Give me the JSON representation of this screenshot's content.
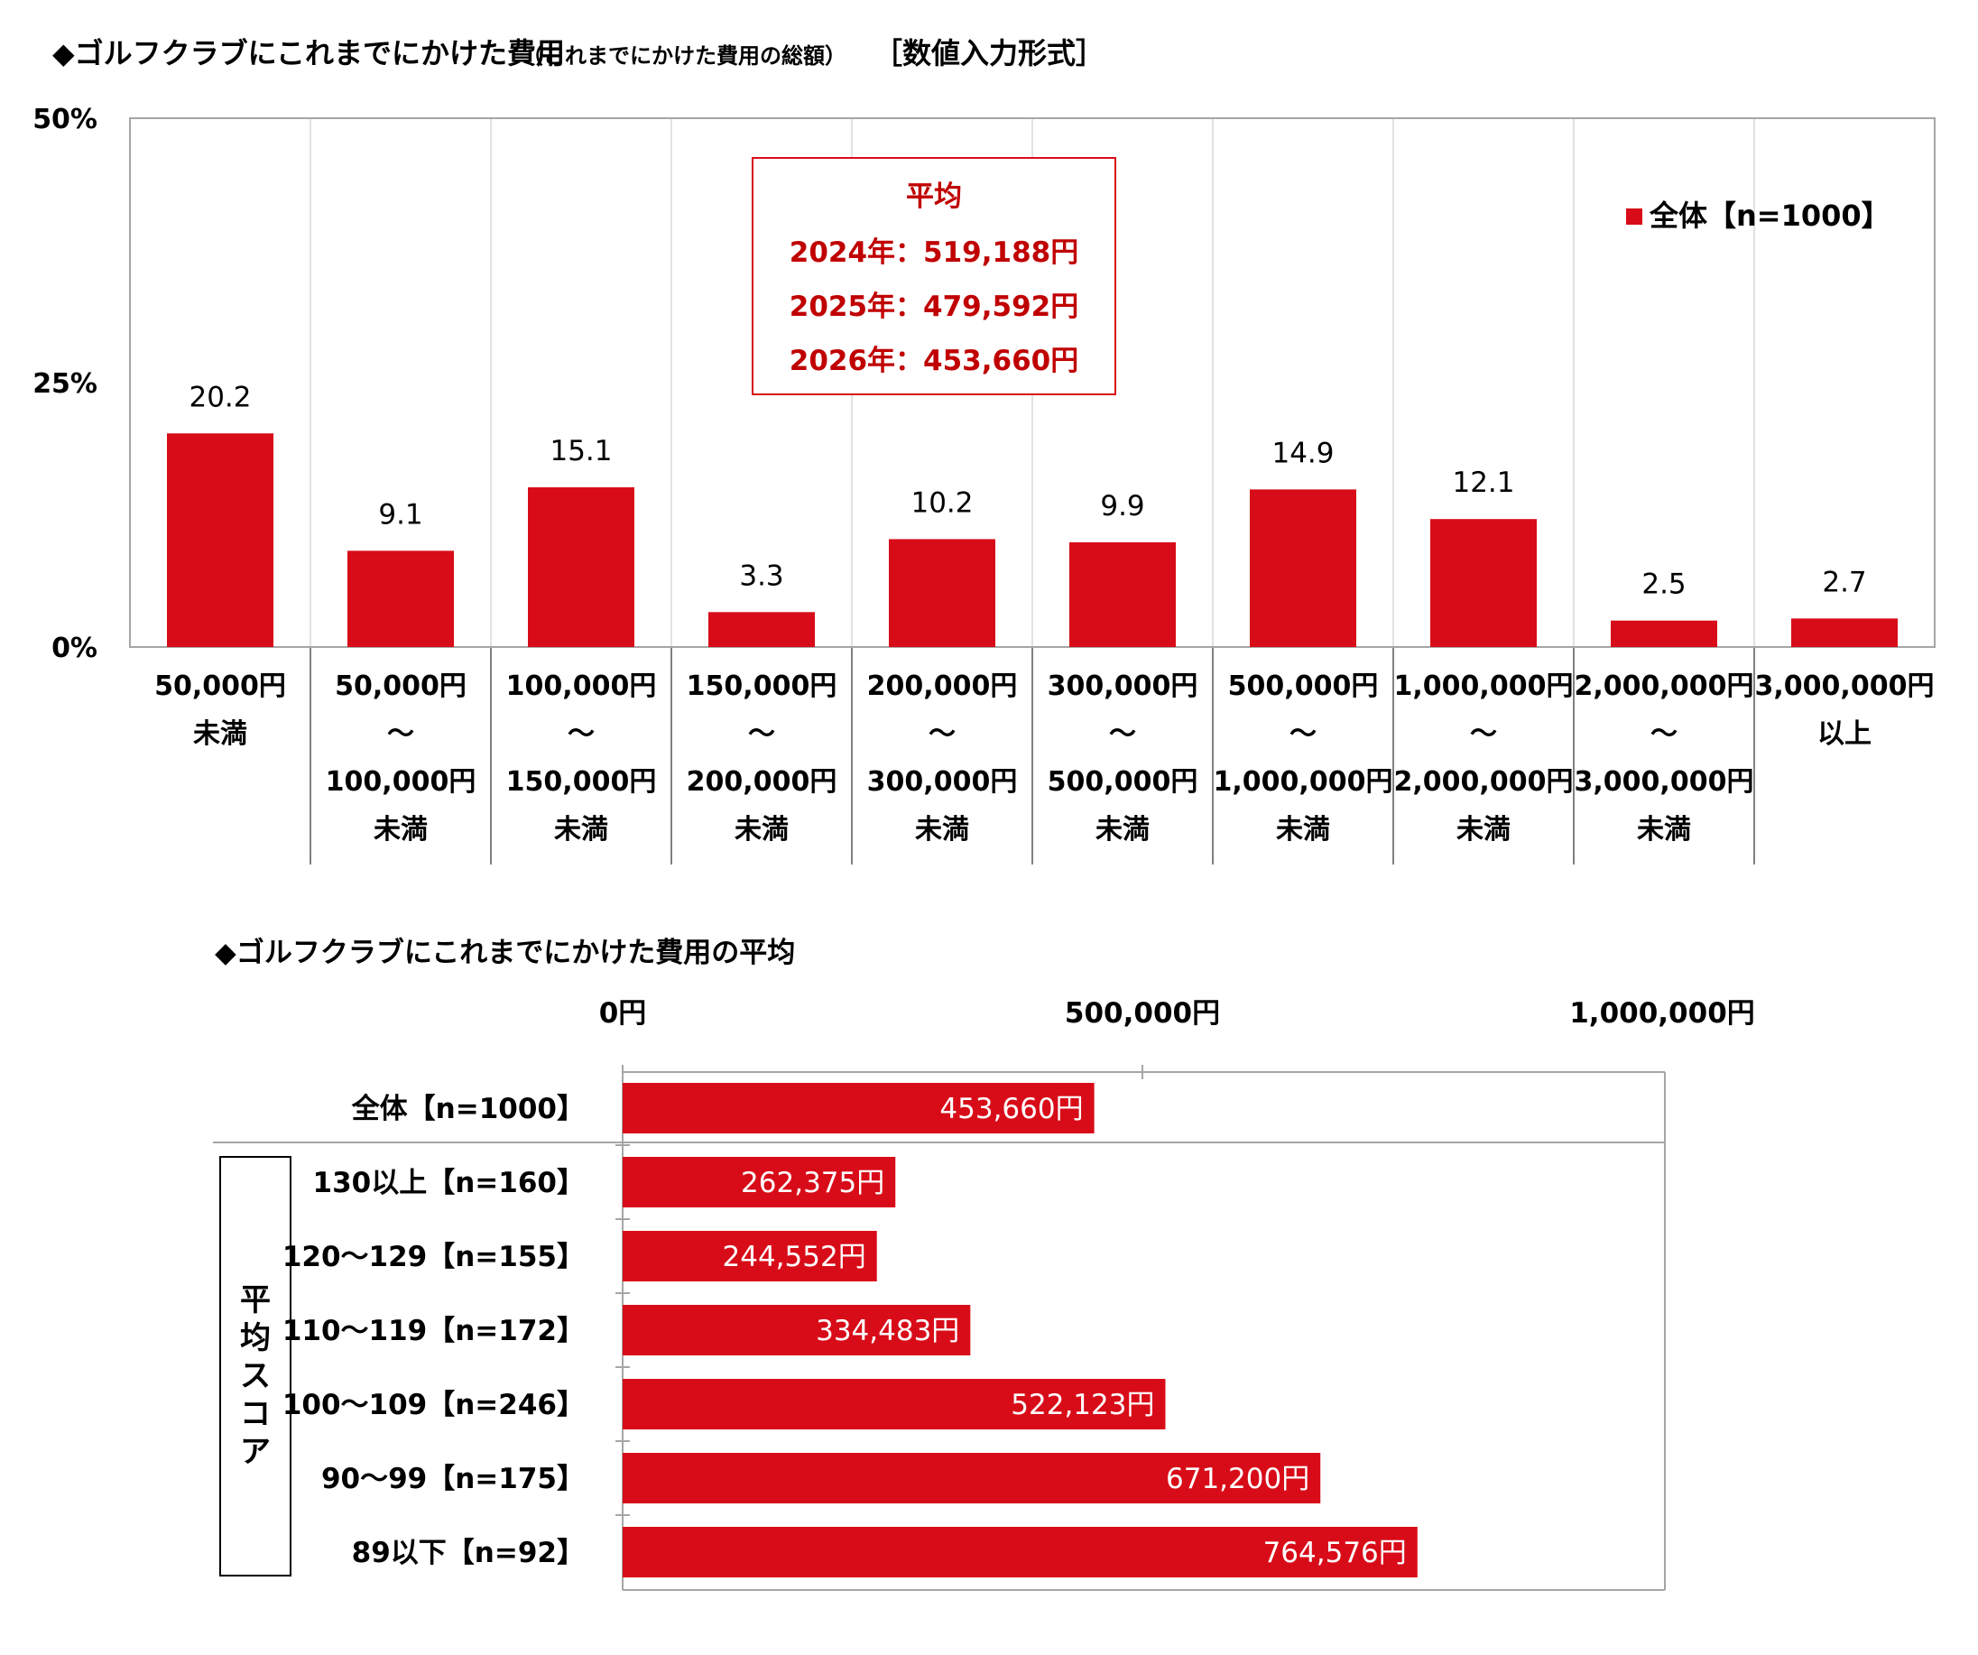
{
  "chart1": {
    "title_main": "◆ゴルフクラブにこれまでにかけた費用",
    "title_paren": "（これまでにかけた費用の総額）",
    "title_bracket": "［数値入力形式］",
    "y_ticks": [
      "50%",
      "25%",
      "0%"
    ],
    "legend_label": "全体【n=1000】",
    "avg_box": {
      "heading": "平均",
      "lines": [
        "2024年：519,188円",
        "2025年：479,592円",
        "2026年：453,660円"
      ]
    }
  },
  "chart2": {
    "title": "◆ゴルフクラブにこれまでにかけた費用の平均",
    "x_ticks": [
      "0円",
      "500,000円",
      "1,000,000円"
    ],
    "group_label": "平均スコア"
  },
  "colors": {
    "bar": "#d80c18",
    "avg_text": "#c00000",
    "grid": "#d9d9d9",
    "axis": "#a6a6a6"
  },
  "chart_data": [
    {
      "type": "bar",
      "categories": [
        [
          "50,000円",
          "未満"
        ],
        [
          "50,000円",
          "～",
          "100,000円",
          "未満"
        ],
        [
          "100,000円",
          "～",
          "150,000円",
          "未満"
        ],
        [
          "150,000円",
          "～",
          "200,000円",
          "未満"
        ],
        [
          "200,000円",
          "～",
          "300,000円",
          "未満"
        ],
        [
          "300,000円",
          "～",
          "500,000円",
          "未満"
        ],
        [
          "500,000円",
          "～",
          "1,000,000円",
          "未満"
        ],
        [
          "1,000,000円",
          "～",
          "2,000,000円",
          "未満"
        ],
        [
          "2,000,000円",
          "～",
          "3,000,000円",
          "未満"
        ],
        [
          "3,000,000円",
          "以上"
        ]
      ],
      "series": [
        {
          "name": "全体【n=1000】",
          "values": [
            20.2,
            9.1,
            15.1,
            3.3,
            10.2,
            9.9,
            14.9,
            12.1,
            2.5,
            2.7
          ]
        }
      ],
      "ylim": [
        0,
        50
      ],
      "grid": true,
      "legend": "top-right"
    },
    {
      "type": "bar",
      "orientation": "horizontal",
      "categories": [
        "全体【n=1000】",
        "130以上【n=160】",
        "120～129【n=155】",
        "110～119【n=172】",
        "100～109【n=246】",
        "90～99【n=175】",
        "89以下【n=92】"
      ],
      "values": [
        453660,
        262375,
        244552,
        334483,
        522123,
        671200,
        764576
      ],
      "value_labels": [
        "453,660円",
        "262,375円",
        "244,552円",
        "334,483円",
        "522,123円",
        "671,200円",
        "764,576円"
      ],
      "xlim": [
        0,
        1000000
      ]
    }
  ]
}
